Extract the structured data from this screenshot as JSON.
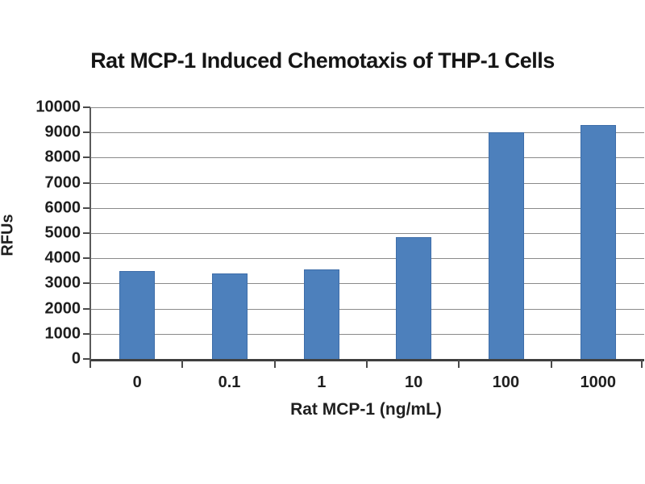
{
  "chart_data": {
    "type": "bar",
    "title": "Rat MCP-1 Induced Chemotaxis of THP-1 Cells",
    "xlabel": "Rat MCP-1 (ng/mL)",
    "ylabel": "RFUs",
    "categories": [
      "0",
      "0.1",
      "1",
      "10",
      "100",
      "1000"
    ],
    "values": [
      3500,
      3400,
      3550,
      4850,
      9000,
      9300
    ],
    "ylim": [
      0,
      10000
    ],
    "ytick_step": 1000,
    "yticks": [
      0,
      1000,
      2000,
      3000,
      4000,
      5000,
      6000,
      7000,
      8000,
      9000,
      10000
    ],
    "grid": "horizontal",
    "legend": "none",
    "colors": {
      "bar_fill": "#4d80bc",
      "bar_border": "#3d6da9",
      "gridline": "#8a8a8a",
      "axis_line": "#4a4a4a",
      "text": "#1f1f1f",
      "background": "#ffffff"
    }
  }
}
